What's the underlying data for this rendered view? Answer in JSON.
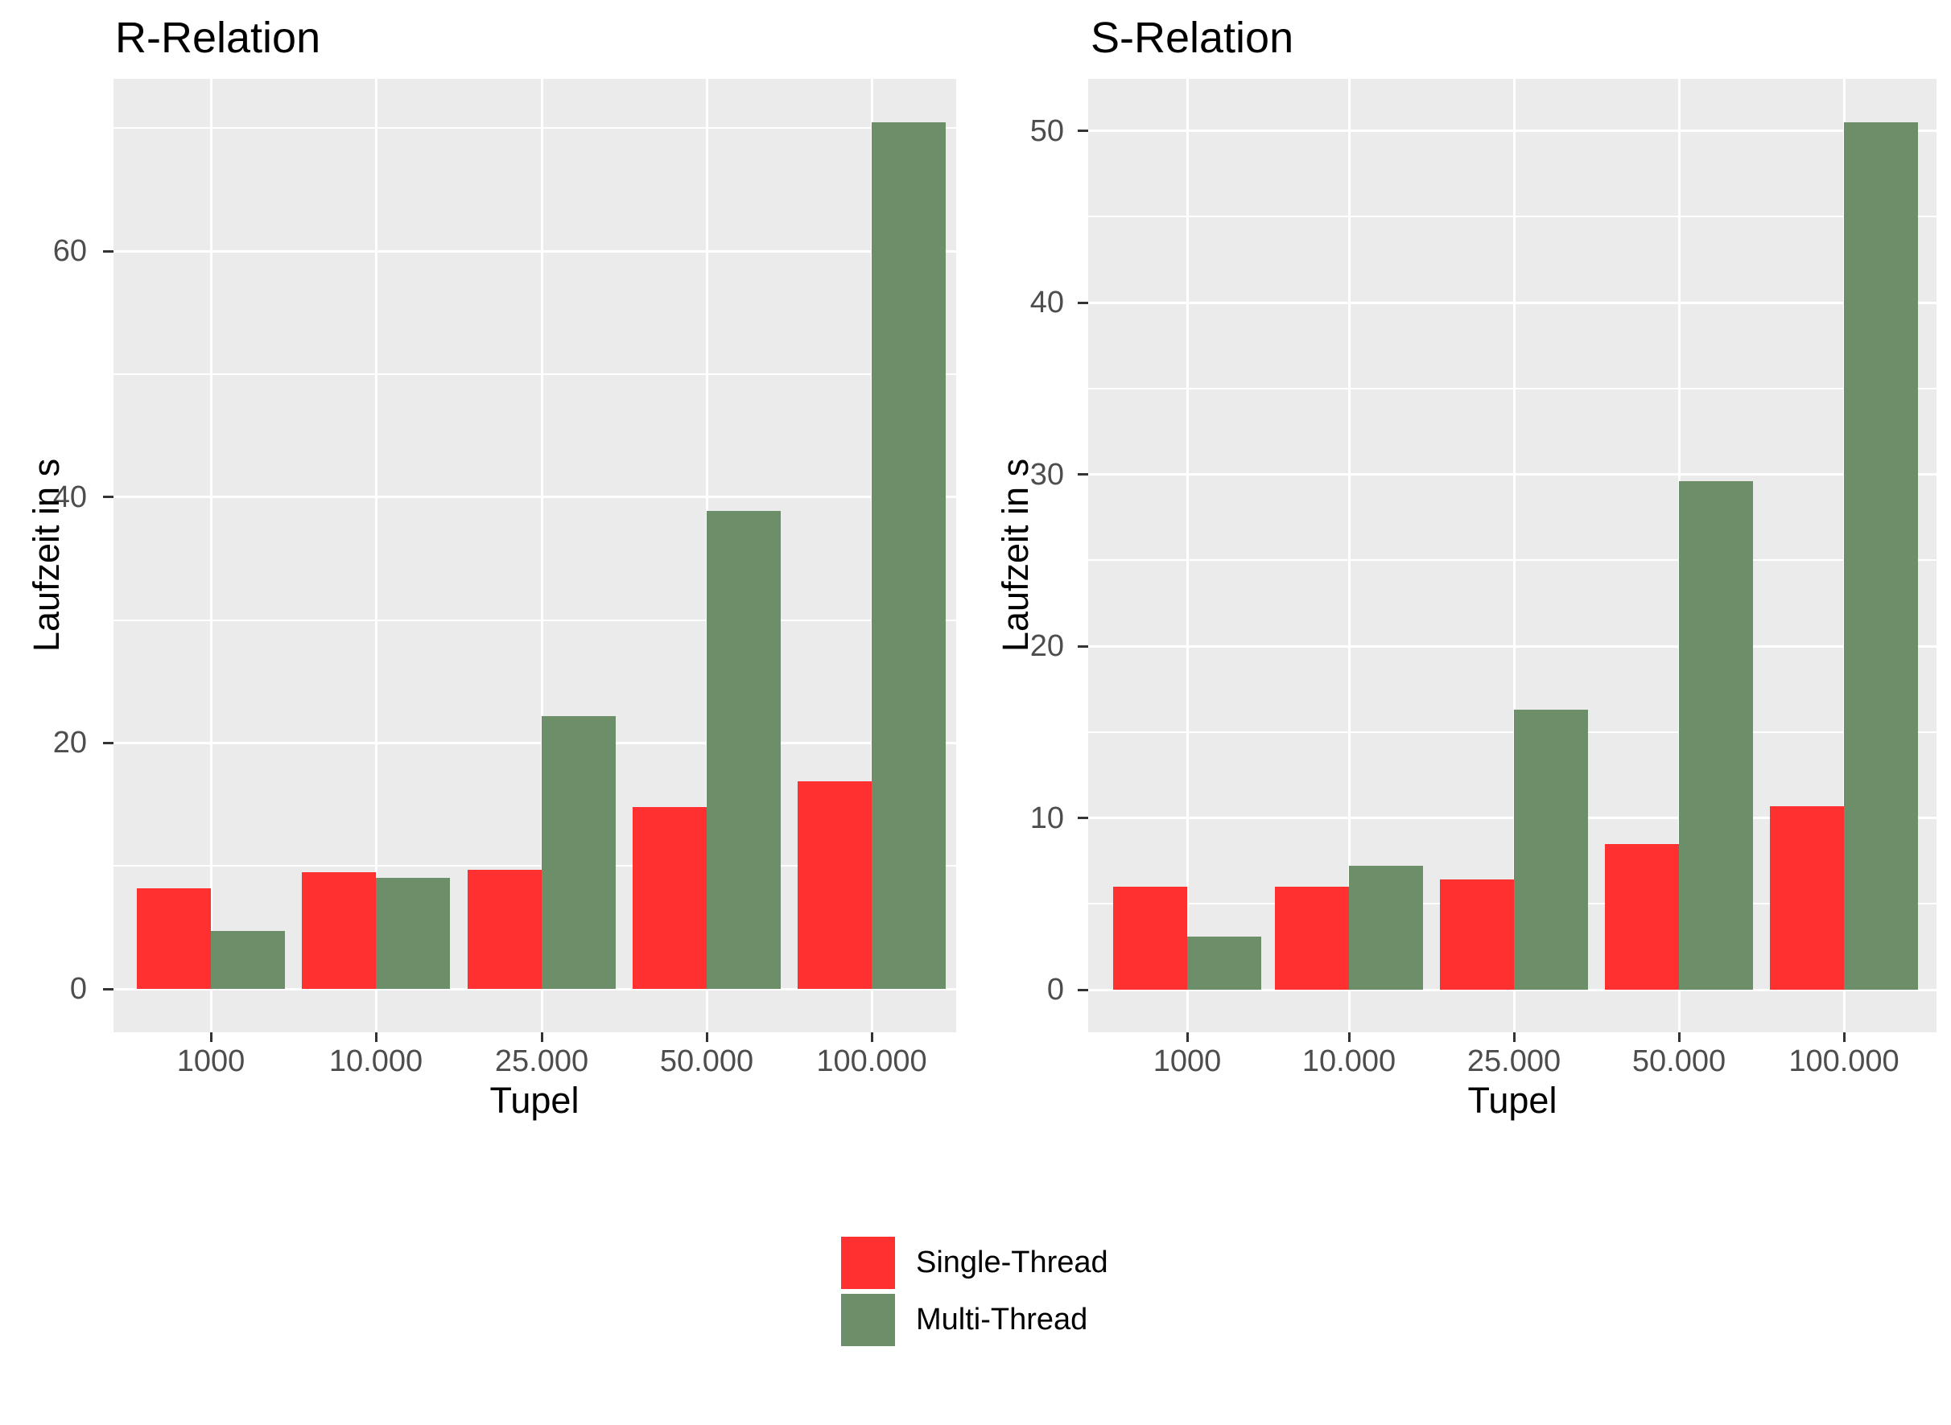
{
  "page": {
    "background": "#FFFFFF"
  },
  "colors": {
    "panel_background": "#EBEBEB",
    "gridline": "#FFFFFF",
    "tick_mark": "#333333",
    "axis_text": "#4D4D4D",
    "title_text": "#000000",
    "single_thread": "#FF3030",
    "multi_thread": "#6C8E68"
  },
  "legend": {
    "items": [
      {
        "label": "Single-Thread",
        "color": "#FF3030"
      },
      {
        "label": "Multi-Thread",
        "color": "#6C8E68"
      }
    ]
  },
  "chart_data": [
    {
      "type": "bar",
      "title": "R-Relation",
      "xlabel": "Tupel",
      "ylabel": "Laufzeit in s",
      "categories": [
        "1000",
        "10.000",
        "25.000",
        "50.000",
        "100.000"
      ],
      "series": [
        {
          "name": "Single-Thread",
          "color": "#FF3030",
          "values": [
            8.2,
            9.5,
            9.7,
            14.8,
            16.9
          ]
        },
        {
          "name": "Multi-Thread",
          "color": "#6C8E68",
          "values": [
            4.7,
            9.0,
            22.2,
            38.9,
            70.5
          ]
        }
      ],
      "y_ticks": [
        0,
        20,
        40,
        60
      ],
      "y_minor_ticks": [
        10,
        30,
        50,
        70
      ],
      "ylim": [
        -3.5,
        74.0
      ],
      "grid": true,
      "legend_position": "bottom"
    },
    {
      "type": "bar",
      "title": "S-Relation",
      "xlabel": "Tupel",
      "ylabel": "Laufzeit in s",
      "categories": [
        "1000",
        "10.000",
        "25.000",
        "50.000",
        "100.000"
      ],
      "series": [
        {
          "name": "Single-Thread",
          "color": "#FF3030",
          "values": [
            6.0,
            6.0,
            6.4,
            8.5,
            10.7
          ]
        },
        {
          "name": "Multi-Thread",
          "color": "#6C8E68",
          "values": [
            3.1,
            7.2,
            16.3,
            29.6,
            50.5
          ]
        }
      ],
      "y_ticks": [
        0,
        10,
        20,
        30,
        40,
        50
      ],
      "y_minor_ticks": [
        5,
        15,
        25,
        35,
        45
      ],
      "ylim": [
        -2.5,
        53.0
      ],
      "grid": true,
      "legend_position": "bottom"
    }
  ]
}
